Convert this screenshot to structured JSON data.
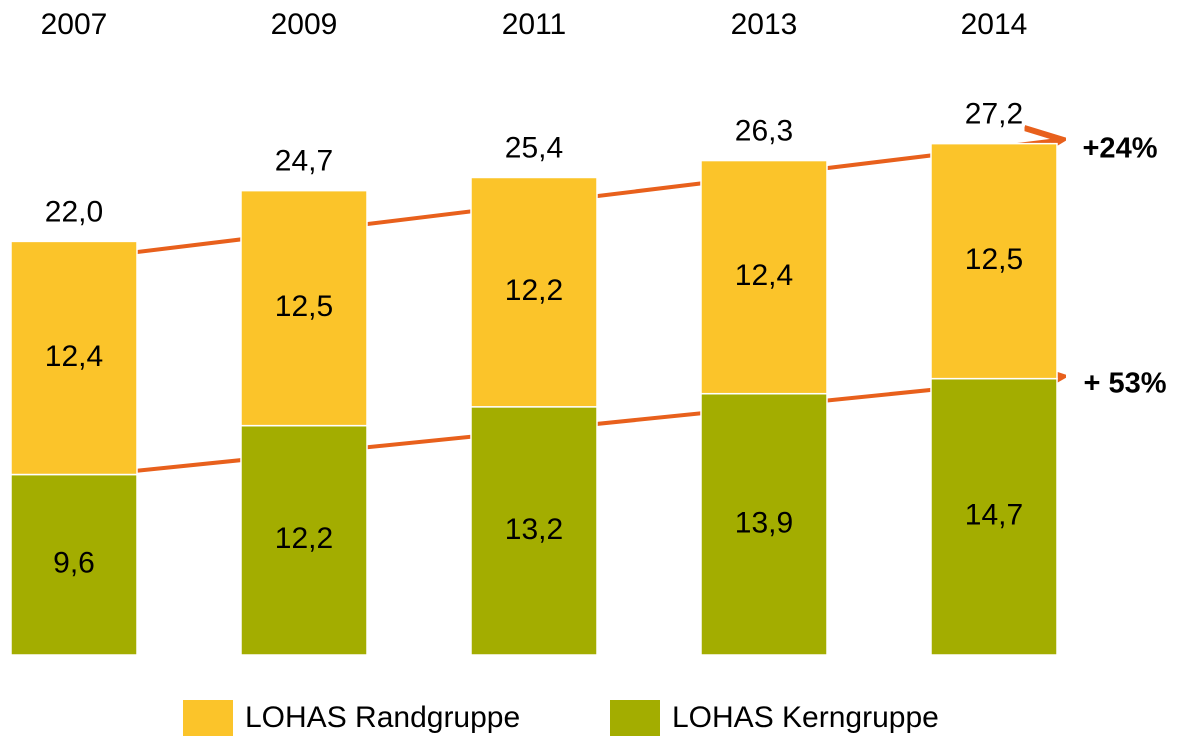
{
  "chart_data": {
    "type": "stacked_bar",
    "categories": [
      "2007",
      "2009",
      "2011",
      "2013",
      "2014"
    ],
    "series": [
      {
        "name": "LOHAS Kerngruppe",
        "color": "#a3ad00",
        "values": [
          9.6,
          12.2,
          13.2,
          13.9,
          14.7
        ],
        "value_labels": [
          "9,6",
          "12,2",
          "13,2",
          "13,9",
          "14,7"
        ]
      },
      {
        "name": "LOHAS Randgruppe",
        "color": "#fbc42a",
        "values": [
          12.4,
          12.5,
          12.2,
          12.4,
          12.5
        ],
        "value_labels": [
          "12,4",
          "12,5",
          "12,2",
          "12,4",
          "12,5"
        ]
      }
    ],
    "totals": [
      22.0,
      24.7,
      25.4,
      26.3,
      27.2
    ],
    "total_labels": [
      "22,0",
      "24,7",
      "25,4",
      "26,3",
      "27,2"
    ],
    "annotations": [
      "+24%",
      "+ 53%"
    ]
  }
}
